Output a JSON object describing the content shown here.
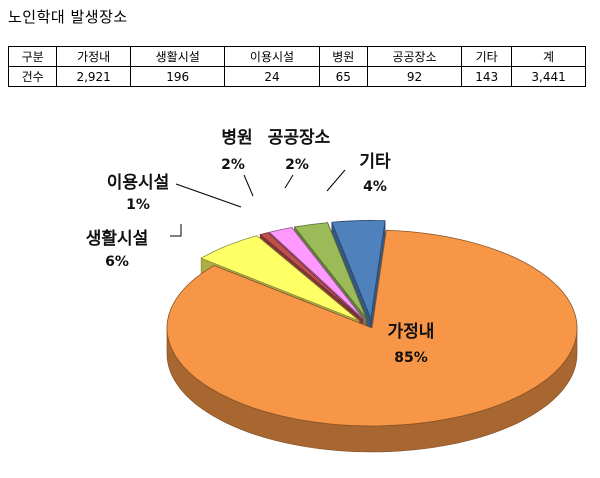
{
  "title": "노인학대 발생장소",
  "table": {
    "header": [
      "구분",
      "가정내",
      "생활시설",
      "이용시설",
      "병원",
      "공공장소",
      "기타",
      "계"
    ],
    "row": [
      "건수",
      "2,921",
      "196",
      "24",
      "65",
      "92",
      "143",
      "3,441"
    ]
  },
  "chart_data": {
    "type": "pie",
    "categories": [
      "가정내",
      "생활시설",
      "이용시설",
      "병원",
      "공공장소",
      "기타"
    ],
    "values": [
      2921,
      196,
      24,
      65,
      92,
      143
    ],
    "labels": [
      "85%",
      "6%",
      "1%",
      "2%",
      "2%",
      "4%"
    ],
    "colors": [
      "#F79646",
      "#FFFF66",
      "#C0504D",
      "#FF99FF",
      "#9BBB59",
      "#4F81BD"
    ],
    "title": ""
  }
}
